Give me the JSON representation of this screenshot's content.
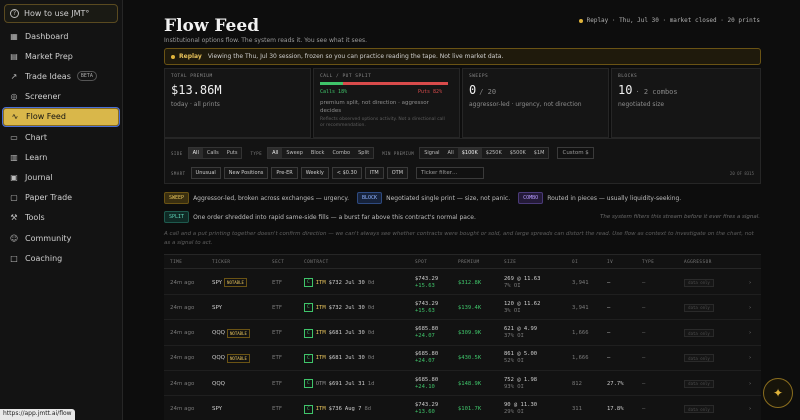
{
  "sidebar": {
    "howto": "How to use JMT°",
    "items": [
      {
        "label": "Dashboard",
        "icon": "dashboard-icon",
        "glyph": "▦"
      },
      {
        "label": "Market Prep",
        "icon": "document-icon",
        "glyph": "▤"
      },
      {
        "label": "Trade Ideas",
        "icon": "trend-icon",
        "glyph": "↗",
        "badge": "BETA"
      },
      {
        "label": "Screener",
        "icon": "screener-icon",
        "glyph": "◎"
      },
      {
        "label": "Flow Feed",
        "icon": "flow-icon",
        "glyph": "∿",
        "active": true
      },
      {
        "label": "Chart",
        "icon": "chart-icon",
        "glyph": "▭"
      },
      {
        "label": "Learn",
        "icon": "book-icon",
        "glyph": "▥"
      },
      {
        "label": "Journal",
        "icon": "journal-icon",
        "glyph": "▣"
      },
      {
        "label": "Paper Trade",
        "icon": "paper-icon",
        "glyph": "▢"
      },
      {
        "label": "Tools",
        "icon": "tools-icon",
        "glyph": "⚒"
      },
      {
        "label": "Community",
        "icon": "community-icon",
        "glyph": "☺"
      },
      {
        "label": "Coaching",
        "icon": "coaching-icon",
        "glyph": "□"
      }
    ],
    "url_tooltip": "https://app.jmtt.ai/flow"
  },
  "header": {
    "title": "Flow Feed",
    "subtitle": "Institutional options flow. The system reads it. You see what it sees.",
    "replay_status": "Replay · Thu, Jul 30 · market closed · 20 prints"
  },
  "banner": {
    "label": "Replay",
    "text": "Viewing the Thu, Jul 30 session, frozen so you can practice reading the tape. Not live market data."
  },
  "stats": {
    "total_premium": {
      "label": "TOTAL PREMIUM",
      "value": "$13.86M",
      "sub": "today · all prints"
    },
    "split": {
      "label": "CALL / PUT SPLIT",
      "calls_pct": 18,
      "calls": "Calls 18%",
      "puts": "Puts 82%",
      "sub": "premium split, not direction · aggressor decides",
      "note": "Reflects observed options activity. Not a directional call or recommendation."
    },
    "sweeps": {
      "label": "SWEEPS",
      "value": "0",
      "of": "/ 20",
      "sub": "aggressor-led · urgency, not direction"
    },
    "blocks": {
      "label": "BLOCKS",
      "value": "10",
      "extra": "· 2 combos",
      "sub": "negotiated size"
    }
  },
  "filters": {
    "side_label": "SIDE",
    "side": [
      "All",
      "Calls",
      "Puts"
    ],
    "type_label": "TYPE",
    "type": [
      "All",
      "Sweep",
      "Block",
      "Combo",
      "Split"
    ],
    "minprem_label": "MIN PREMIUM",
    "minprem": [
      "Signal",
      "All",
      "$100K",
      "$250K",
      "$500K",
      "$1M"
    ],
    "custom_placeholder": "Custom $",
    "smart_label": "SMART",
    "smart": [
      "Unusual",
      "New Positions",
      "Pre-ER",
      "Weekly",
      "< $0.30",
      "ITM",
      "OTM"
    ],
    "ticker_placeholder": "Ticker filter…",
    "count": "20 OF 8315"
  },
  "legend": {
    "sweep_tag": "SWEEP",
    "sweep_text": "Aggressor-led, broken across exchanges — urgency.",
    "block_tag": "BLOCK",
    "block_text": "Negotiated single print — size, not panic.",
    "combo_tag": "COMBO",
    "combo_text": "Routed in pieces — usually liquidity-seeking.",
    "split_tag": "SPLIT",
    "split_text": "One order shredded into rapid same-side fills — a burst far above this contract's normal pace.",
    "filter_note": "The system filters this stream before it ever fires a signal."
  },
  "disclaimer": "A call and a put printing together doesn't confirm direction — we can't always see whether contracts were bought or sold, and large spreads can distort the read. Use flow as context to investigate on the chart, not as a signal to act.",
  "table": {
    "headers": [
      "TIME",
      "TICKER",
      "SECT",
      "CONTRACT",
      "SPOT",
      "PREMIUM",
      "SIZE",
      "OI",
      "IV",
      "TYPE",
      "AGGRESSOR"
    ],
    "aggr_placeholder": "data only",
    "rows": [
      {
        "time": "24m ago",
        "ticker": "SPY",
        "notable": "NOTABLE",
        "sect": "ETF",
        "side": "C",
        "money": "ITM",
        "strike": "$732",
        "exp": "Jul 30",
        "dte": "0d",
        "spot": "$743.29",
        "spot_chg": "+15.63",
        "premium": "$312.8K",
        "size": "269 @ 11.63",
        "size_sub": "7% OI",
        "oi": "3,941",
        "iv": "—",
        "type": "—"
      },
      {
        "time": "24m ago",
        "ticker": "SPY",
        "notable": "",
        "sect": "ETF",
        "side": "C",
        "money": "ITM",
        "strike": "$732",
        "exp": "Jul 30",
        "dte": "0d",
        "spot": "$743.29",
        "spot_chg": "+15.63",
        "premium": "$139.4K",
        "size": "120 @ 11.62",
        "size_sub": "3% OI",
        "oi": "3,941",
        "iv": "—",
        "type": "—"
      },
      {
        "time": "24m ago",
        "ticker": "QQQ",
        "notable": "NOTABLE",
        "sect": "ETF",
        "side": "C",
        "money": "ITM",
        "strike": "$681",
        "exp": "Jul 30",
        "dte": "0d",
        "spot": "$685.80",
        "spot_chg": "+24.07",
        "premium": "$309.9K",
        "size": "621 @ 4.99",
        "size_sub": "37% OI",
        "oi": "1,666",
        "iv": "—",
        "type": "—"
      },
      {
        "time": "24m ago",
        "ticker": "QQQ",
        "notable": "NOTABLE",
        "sect": "ETF",
        "side": "C",
        "money": "ITM",
        "strike": "$681",
        "exp": "Jul 30",
        "dte": "0d",
        "spot": "$685.80",
        "spot_chg": "+24.07",
        "premium": "$430.5K",
        "size": "861 @ 5.00",
        "size_sub": "52% OI",
        "oi": "1,666",
        "iv": "—",
        "type": "—"
      },
      {
        "time": "24m ago",
        "ticker": "QQQ",
        "notable": "",
        "sect": "ETF",
        "side": "C",
        "money": "OTM",
        "strike": "$691",
        "exp": "Jul 31",
        "dte": "1d",
        "spot": "$685.80",
        "spot_chg": "+24.10",
        "premium": "$148.9K",
        "size": "752 @ 1.98",
        "size_sub": "93% OI",
        "oi": "812",
        "iv": "27.7%",
        "type": "—"
      },
      {
        "time": "24m ago",
        "ticker": "SPY",
        "notable": "",
        "sect": "ETF",
        "side": "C",
        "money": "ITM",
        "strike": "$736",
        "exp": "Aug 7",
        "dte": "8d",
        "spot": "$743.29",
        "spot_chg": "+13.60",
        "premium": "$101.7K",
        "size": "90 @ 11.30",
        "size_sub": "29% OI",
        "oi": "311",
        "iv": "17.8%",
        "type": "—"
      }
    ]
  },
  "colors": {
    "accent": "#d9b74a",
    "calls": "#3fc46a",
    "puts": "#d84b4b"
  }
}
